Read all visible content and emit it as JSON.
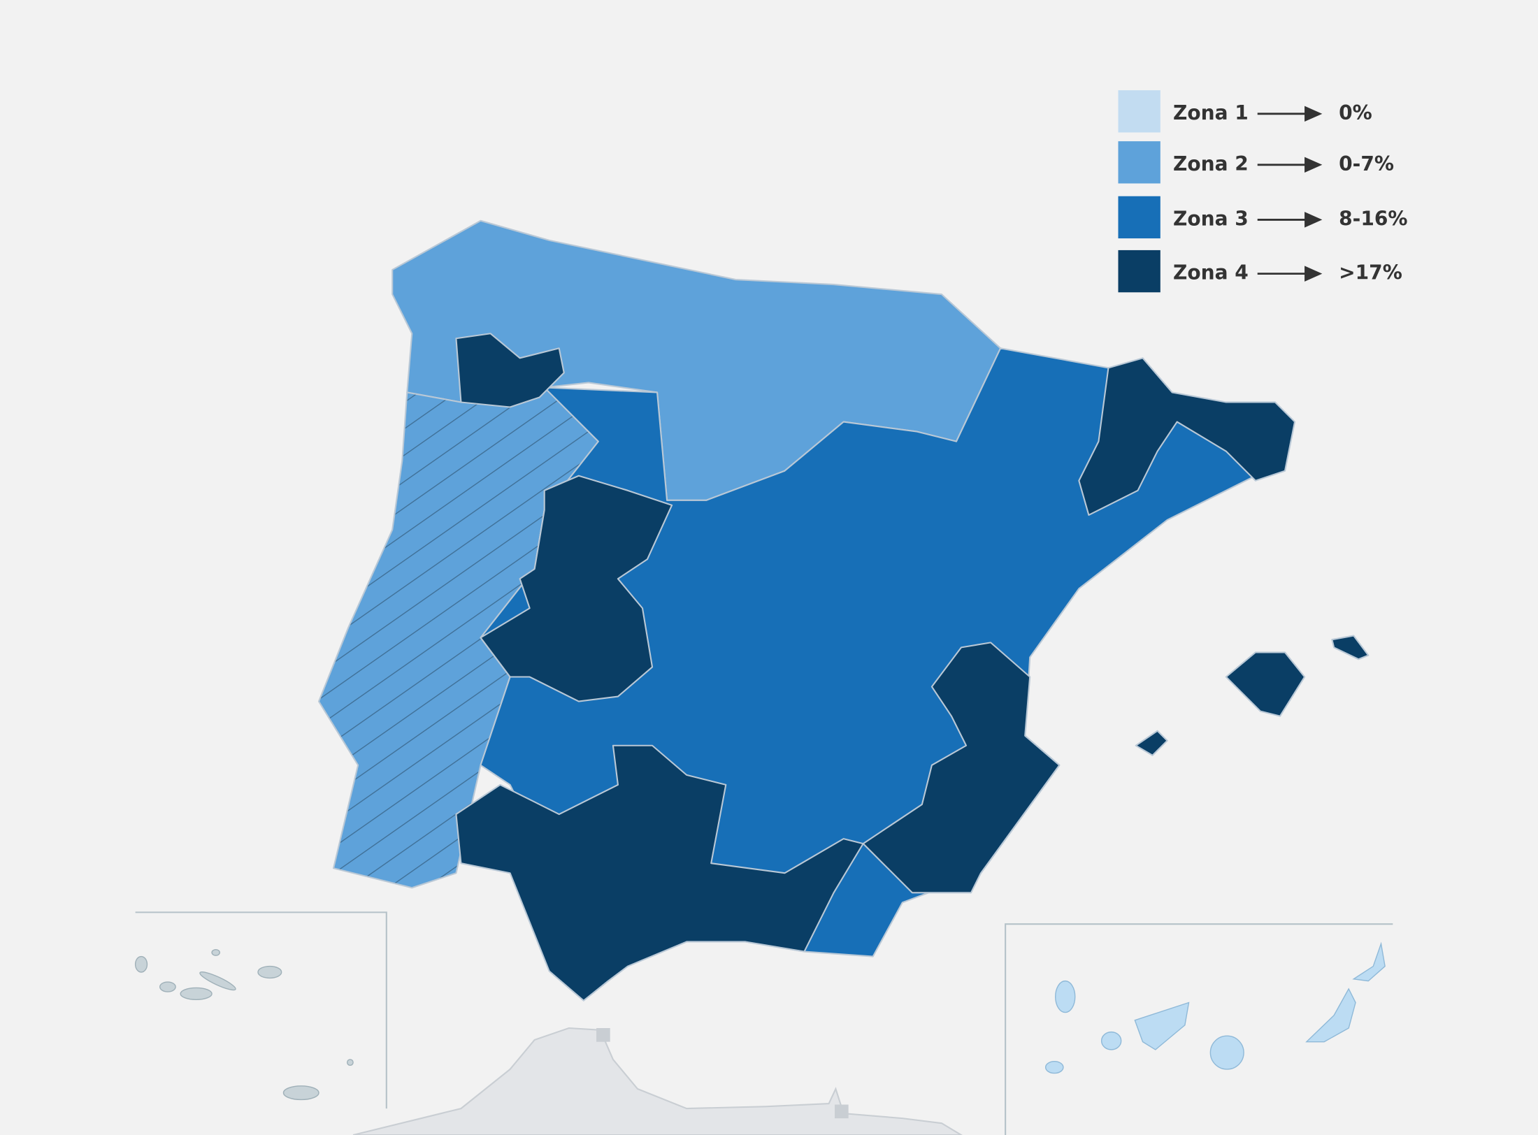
{
  "legend": [
    {
      "name": "Zona 1",
      "range": "0%",
      "color": "#c2dcf1"
    },
    {
      "name": "Zona 2",
      "range": "0-7%",
      "color": "#5ea2da"
    },
    {
      "name": "Zona 3",
      "range": "8-16%",
      "color": "#176fb7"
    },
    {
      "name": "Zona 4",
      "range": ">17%",
      "color": "#0a3e65"
    }
  ]
}
